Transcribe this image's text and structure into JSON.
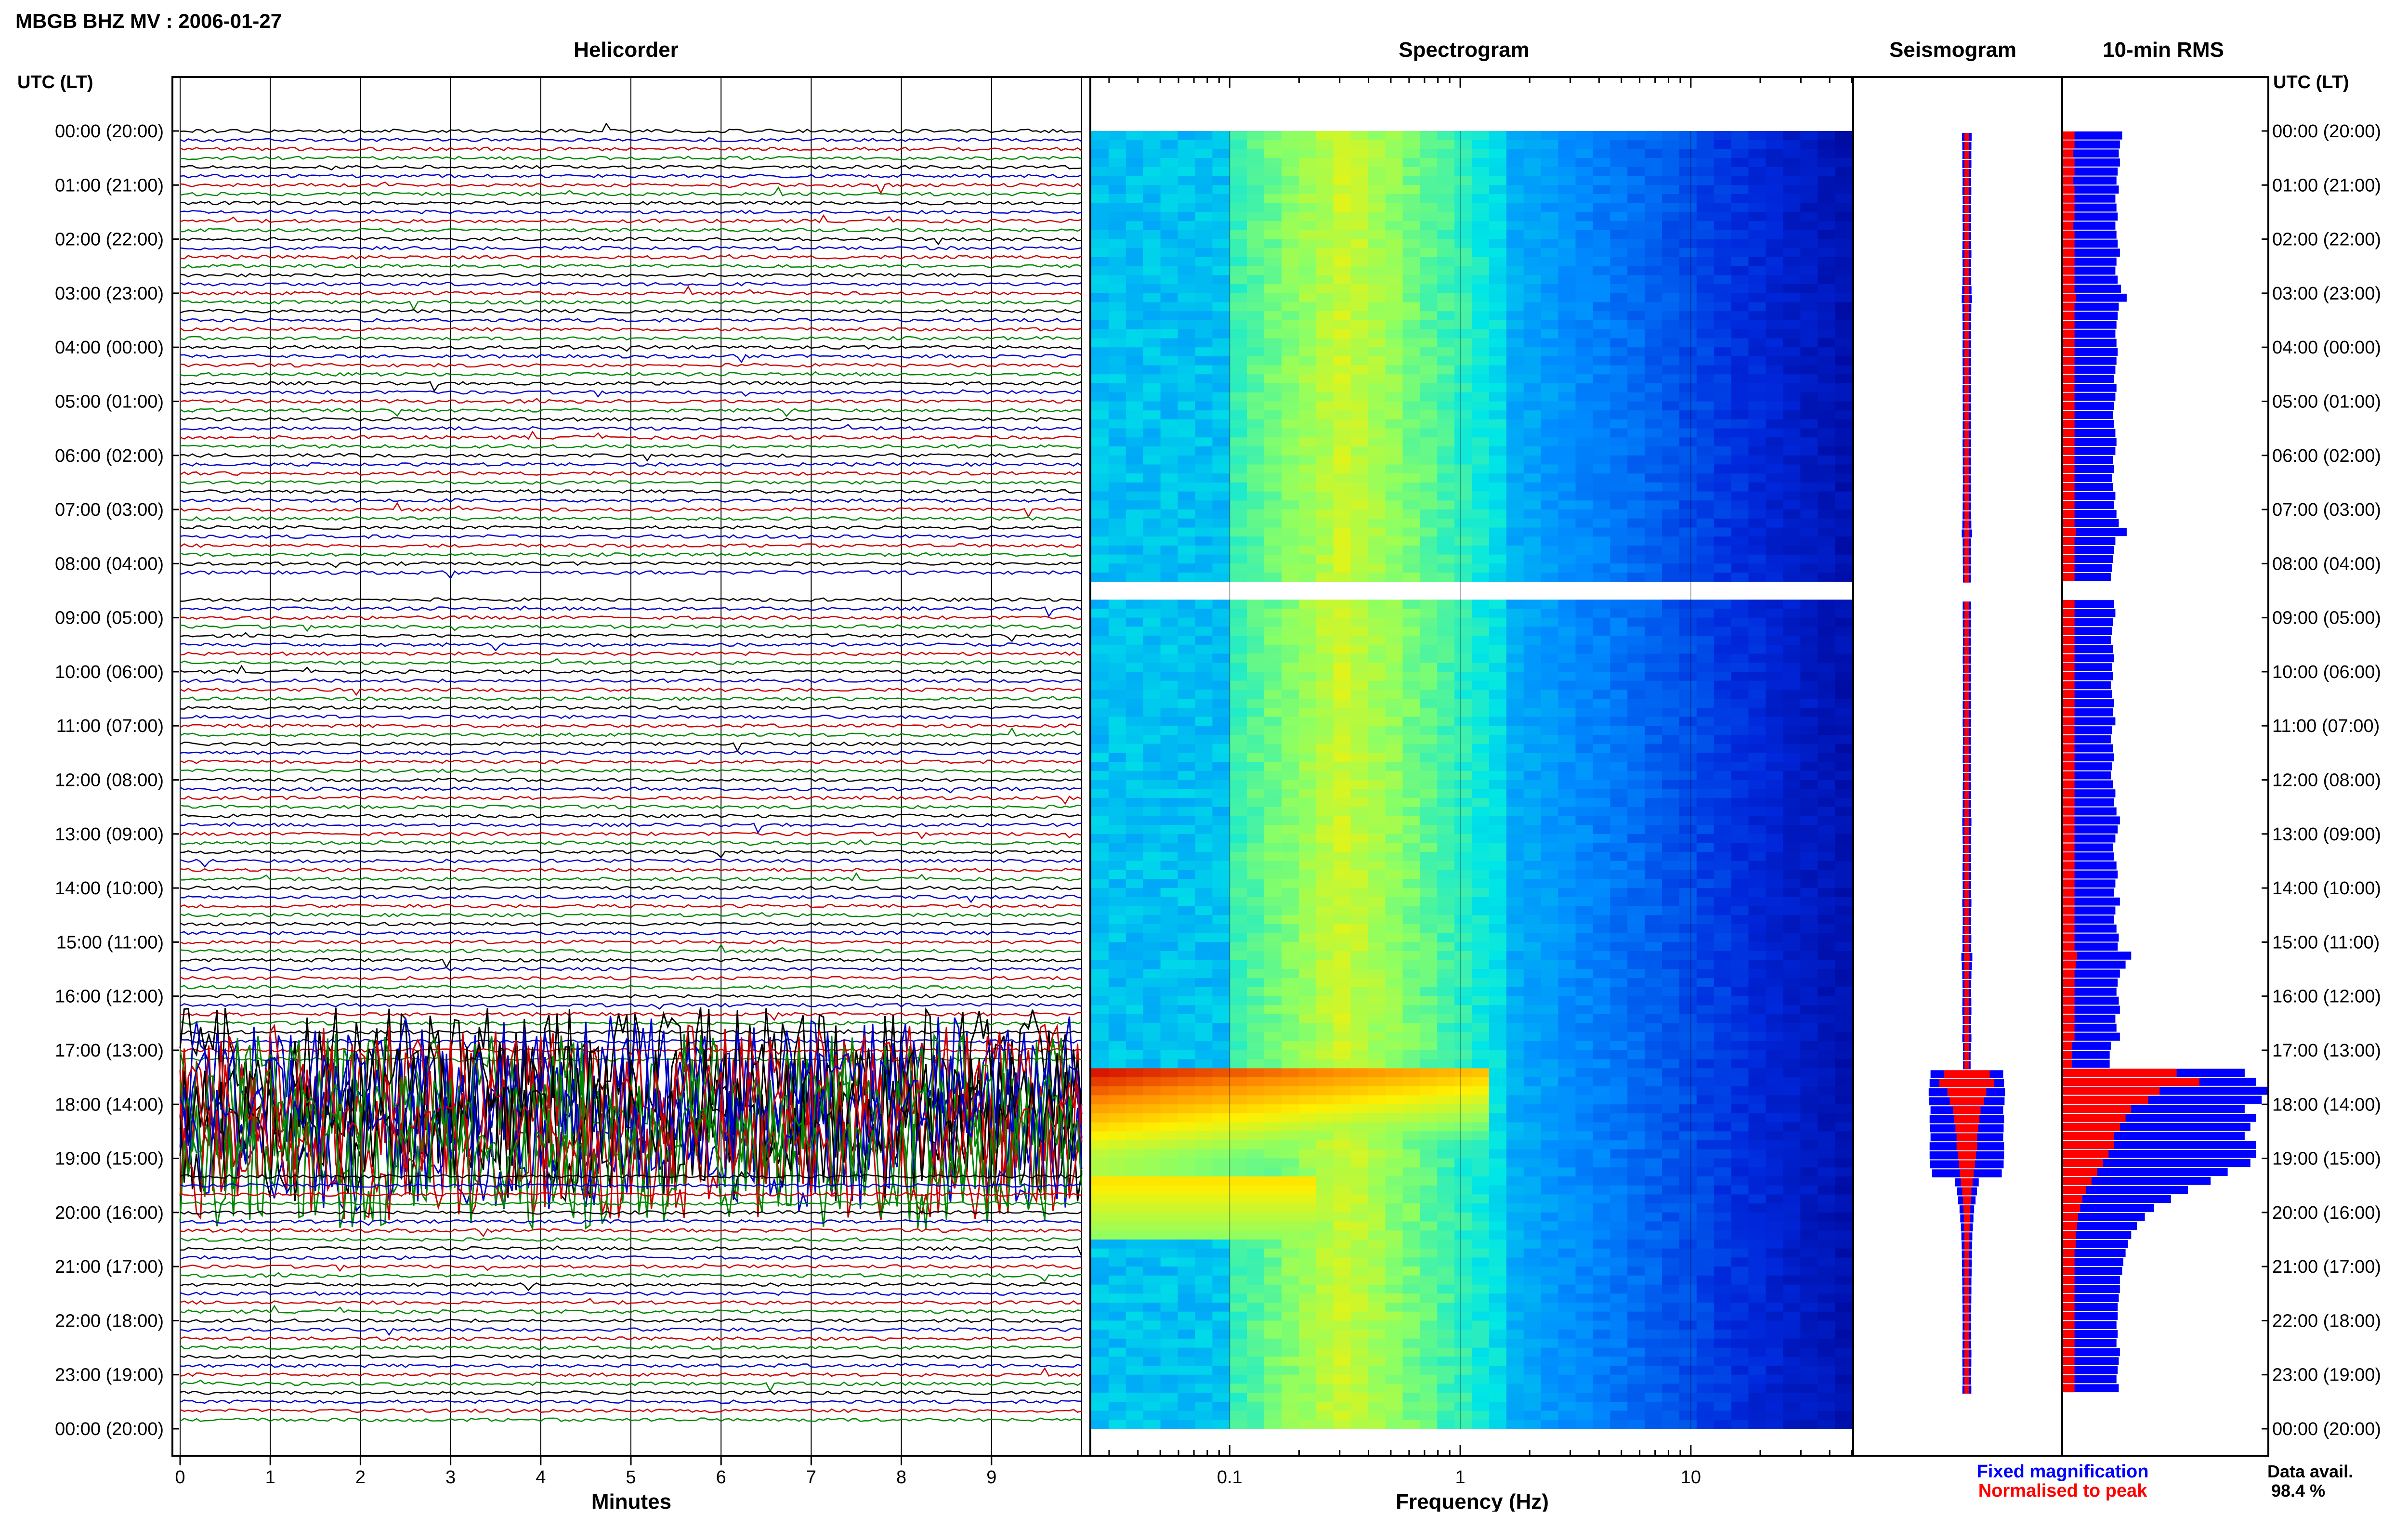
{
  "header": {
    "title": "MBGB BHZ MV : 2006-01-27"
  },
  "panels": {
    "helicorder": "Helicorder",
    "spectrogram": "Spectrogram",
    "seismogram": "Seismogram",
    "rms": "10-min RMS"
  },
  "axes": {
    "time_label": "UTC (LT)",
    "helicorder_xlabel": "Minutes",
    "spectrogram_xlabel": "Frequency (Hz)",
    "minute_ticks": [
      "0",
      "1",
      "2",
      "3",
      "4",
      "5",
      "6",
      "7",
      "8",
      "9"
    ],
    "frequency_ticks": [
      "0.1",
      "1",
      "10"
    ],
    "frequency_log_min": -1.6,
    "frequency_log_max": 1.7
  },
  "time_ticks": [
    "00:00 (20:00)",
    "01:00 (21:00)",
    "02:00 (22:00)",
    "03:00 (23:00)",
    "04:00 (00:00)",
    "05:00 (01:00)",
    "06:00 (02:00)",
    "07:00 (03:00)",
    "08:00 (04:00)",
    "09:00 (05:00)",
    "10:00 (06:00)",
    "11:00 (07:00)",
    "12:00 (08:00)",
    "13:00 (09:00)",
    "14:00 (10:00)",
    "15:00 (11:00)",
    "16:00 (12:00)",
    "17:00 (13:00)",
    "18:00 (14:00)",
    "19:00 (15:00)",
    "20:00 (16:00)",
    "21:00 (17:00)",
    "22:00 (18:00)",
    "23:00 (19:00)",
    "00:00 (20:00)"
  ],
  "legend": {
    "fixed": "Fixed magnification",
    "normalised": "Normalised to peak",
    "fixed_color": "#0000ff",
    "normalised_color": "#ff0000"
  },
  "availability": {
    "label": "Data avail.",
    "value": "98.4 %"
  },
  "colors": {
    "trace_cycle": [
      "#000000",
      "#0000cc",
      "#cc0000",
      "#008800"
    ],
    "spectrogram_low": "#00008b",
    "spectrogram_high": "#d00000"
  },
  "chart_data": {
    "type": "heatmap",
    "station": "MBGB BHZ MV",
    "date": "2006-01-27",
    "gap_hours": [
      8.3,
      8.6
    ],
    "event_window_hours": [
      17.3,
      19.2
    ],
    "rms_blue": [
      0.52,
      0.5,
      0.49,
      0.5,
      0.48,
      0.47,
      0.49,
      0.46,
      0.47,
      0.48,
      0.46,
      0.47,
      0.48,
      0.5,
      0.47,
      0.46,
      0.48,
      0.51,
      0.56,
      0.49,
      0.48,
      0.47,
      0.46,
      0.47,
      0.48,
      0.47,
      0.46,
      0.45,
      0.47,
      0.46,
      0.45,
      0.44,
      0.45,
      0.46,
      0.47,
      0.46,
      0.44,
      0.45,
      0.43,
      0.44,
      0.46,
      0.45,
      0.47,
      0.49,
      0.56,
      0.46,
      0.45,
      0.44,
      0.43,
      0.42,
      0.44,
      0.43,
      0.45,
      0.46,
      0.44,
      0.43,
      0.42,
      0.44,
      0.45,
      0.43,
      0.44,
      0.42,
      0.43,
      0.45,
      0.44,
      0.46,
      0.43,
      0.42,
      0.44,
      0.45,
      0.43,
      0.42,
      0.44,
      0.46,
      0.45,
      0.47,
      0.5,
      0.48,
      0.46,
      0.44,
      0.45,
      0.47,
      0.48,
      0.46,
      0.45,
      0.5,
      0.46,
      0.45,
      0.47,
      0.49,
      0.48,
      0.6,
      0.55,
      0.5,
      0.48,
      0.47,
      0.49,
      0.5,
      0.46,
      0.47,
      0.5,
      0.42,
      0.41,
      0.41,
      1.6,
      1.7,
      1.8,
      1.75,
      1.6,
      1.7,
      1.65,
      1.6,
      1.7,
      1.7,
      1.65,
      1.45,
      1.3,
      1.1,
      0.95,
      0.8,
      0.72,
      0.65,
      0.6,
      0.57,
      0.55,
      0.53,
      0.52,
      0.5,
      0.5,
      0.49,
      0.48,
      0.48,
      0.47,
      0.48,
      0.47,
      0.5,
      0.49,
      0.48,
      0.47,
      0.49
    ],
    "rms_red": [
      0.1,
      0.1,
      0.09,
      0.1,
      0.1,
      0.09,
      0.1,
      0.1,
      0.1,
      0.1,
      0.09,
      0.1,
      0.1,
      0.1,
      0.1,
      0.1,
      0.1,
      0.1,
      0.11,
      0.1,
      0.1,
      0.1,
      0.1,
      0.1,
      0.1,
      0.1,
      0.1,
      0.1,
      0.1,
      0.1,
      0.1,
      0.1,
      0.1,
      0.1,
      0.1,
      0.1,
      0.1,
      0.1,
      0.1,
      0.1,
      0.1,
      0.1,
      0.1,
      0.1,
      0.11,
      0.1,
      0.1,
      0.1,
      0.1,
      0.1,
      0.1,
      0.1,
      0.1,
      0.1,
      0.1,
      0.1,
      0.1,
      0.1,
      0.1,
      0.1,
      0.1,
      0.1,
      0.1,
      0.1,
      0.1,
      0.1,
      0.1,
      0.1,
      0.1,
      0.1,
      0.1,
      0.1,
      0.1,
      0.1,
      0.1,
      0.1,
      0.1,
      0.1,
      0.1,
      0.1,
      0.1,
      0.1,
      0.1,
      0.1,
      0.1,
      0.1,
      0.1,
      0.1,
      0.1,
      0.1,
      0.1,
      0.12,
      0.11,
      0.1,
      0.1,
      0.1,
      0.1,
      0.1,
      0.1,
      0.1,
      0.1,
      0.08,
      0.08,
      0.08,
      1.0,
      1.2,
      0.85,
      0.75,
      0.6,
      0.55,
      0.5,
      0.45,
      0.45,
      0.4,
      0.35,
      0.3,
      0.25,
      0.2,
      0.17,
      0.15,
      0.13,
      0.12,
      0.11,
      0.11,
      0.1,
      0.1,
      0.1,
      0.1,
      0.1,
      0.1,
      0.1,
      0.1,
      0.1,
      0.1,
      0.1,
      0.1,
      0.1,
      0.1,
      0.1,
      0.1
    ]
  }
}
